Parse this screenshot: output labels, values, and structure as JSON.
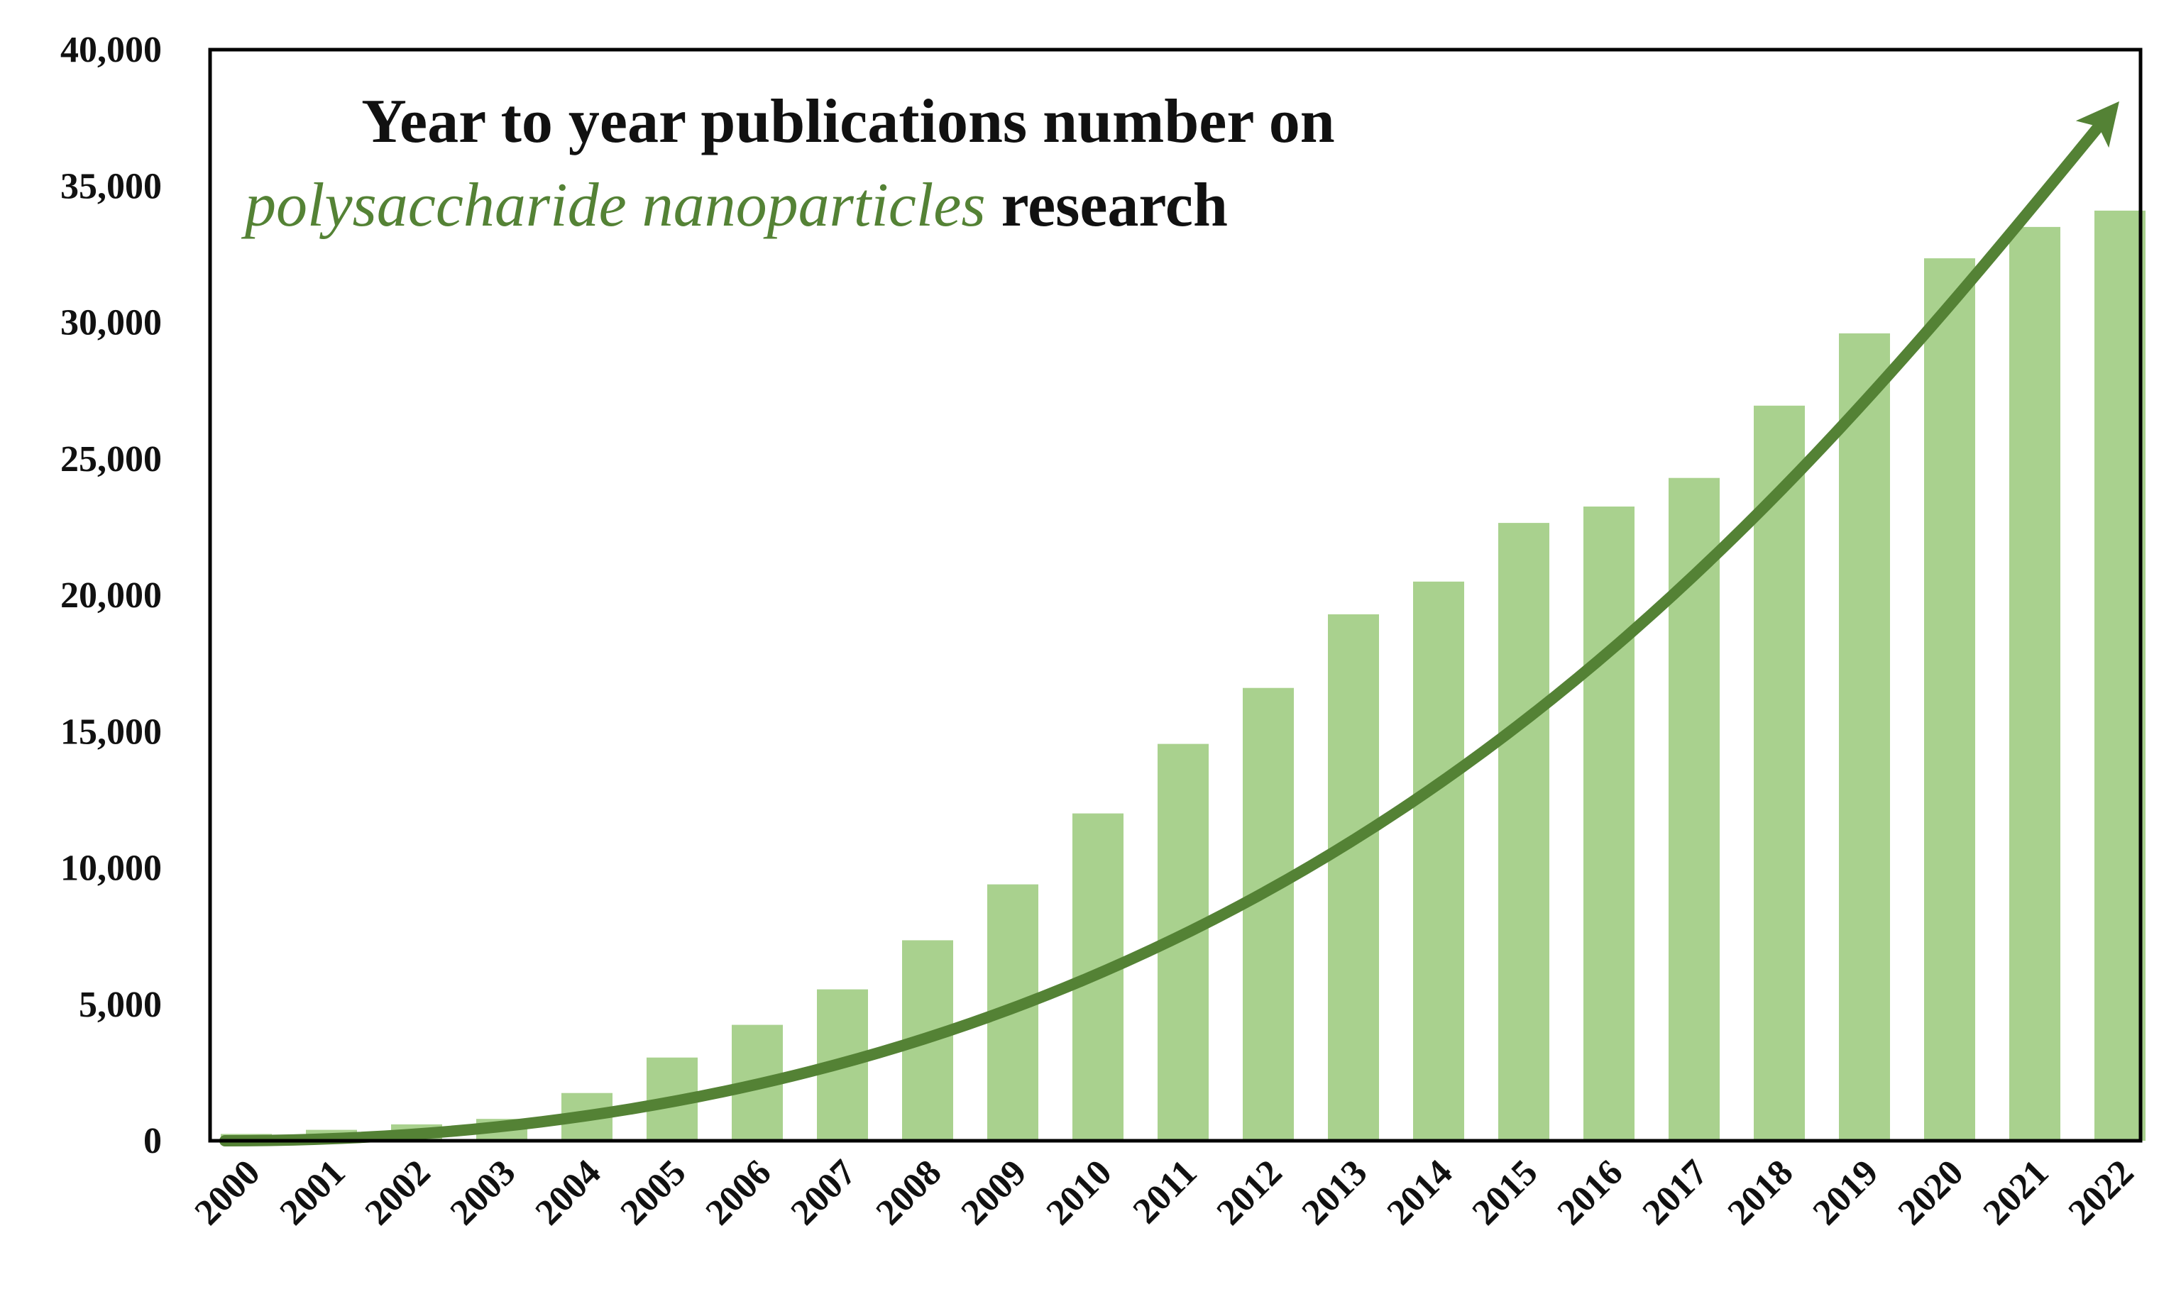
{
  "chart_data": {
    "type": "bar",
    "title": {
      "line1": "Year to year publications number on",
      "line2_italic": "polysaccharide nanoparticles",
      "line2_rest": " research"
    },
    "xlabel": "",
    "ylabel": "",
    "ylim": [
      0,
      40000
    ],
    "yticks": [
      {
        "value": 0,
        "label": "0"
      },
      {
        "value": 5000,
        "label": "5,000"
      },
      {
        "value": 10000,
        "label": "10,000"
      },
      {
        "value": 15000,
        "label": "15,000"
      },
      {
        "value": 20000,
        "label": "20,000"
      },
      {
        "value": 25000,
        "label": "25,000"
      },
      {
        "value": 30000,
        "label": "30,000"
      },
      {
        "value": 35000,
        "label": "35,000"
      },
      {
        "value": 40000,
        "label": "40,000"
      }
    ],
    "categories": [
      "2000",
      "2001",
      "2002",
      "2003",
      "2004",
      "2005",
      "2006",
      "2007",
      "2008",
      "2009",
      "2010",
      "2011",
      "2012",
      "2013",
      "2014",
      "2015",
      "2016",
      "2017",
      "2018",
      "2019",
      "2020",
      "2021",
      "2022"
    ],
    "values": [
      250,
      400,
      600,
      800,
      1750,
      3050,
      4250,
      5550,
      7350,
      9400,
      12000,
      14550,
      16600,
      19300,
      20500,
      22650,
      23250,
      24300,
      26950,
      29600,
      32350,
      33500,
      34100
    ],
    "trend_arrow": {
      "x_start": 2000,
      "y_start": 0,
      "x_end": 2022,
      "y_end": 37500
    },
    "grid": false,
    "legend": "none"
  },
  "colors": {
    "bar": "#a9d18e",
    "trend": "#548235",
    "title_italic": "#548235",
    "text": "#111111",
    "frame": "#000000"
  }
}
